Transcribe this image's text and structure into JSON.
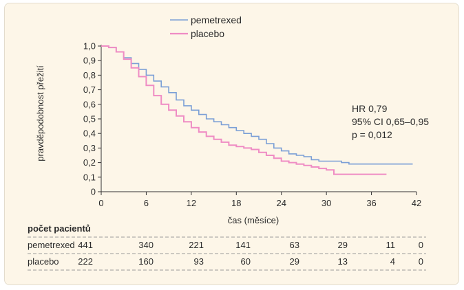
{
  "chart_data": {
    "type": "line",
    "title": "",
    "xlabel": "čas (měsíce)",
    "ylabel": "pravděpodobnost přežití",
    "xlim": [
      0,
      42
    ],
    "ylim": [
      0,
      1
    ],
    "xticks": [
      "0",
      "6",
      "12",
      "18",
      "24",
      "30",
      "36",
      "42"
    ],
    "xtick_values": [
      0,
      6,
      12,
      18,
      24,
      30,
      36,
      42
    ],
    "yticks": [
      "0",
      "0,1",
      "0,2",
      "0,3",
      "0,4",
      "0,5",
      "0,6",
      "0,7",
      "0,8",
      "0,9",
      "1,0"
    ],
    "ytick_values": [
      0,
      0.1,
      0.2,
      0.3,
      0.4,
      0.5,
      0.6,
      0.7,
      0.8,
      0.9,
      1.0
    ],
    "grid": false,
    "legend_position": "top-center",
    "step": true,
    "series": [
      {
        "name": "pemetrexed",
        "color": "#7b9fd6",
        "points": [
          [
            0,
            1.0
          ],
          [
            1,
            0.99
          ],
          [
            2,
            0.96
          ],
          [
            3,
            0.92
          ],
          [
            4,
            0.88
          ],
          [
            5,
            0.84
          ],
          [
            6,
            0.8
          ],
          [
            7,
            0.76
          ],
          [
            8,
            0.72
          ],
          [
            9,
            0.68
          ],
          [
            10,
            0.63
          ],
          [
            11,
            0.59
          ],
          [
            12,
            0.56
          ],
          [
            13,
            0.53
          ],
          [
            14,
            0.5
          ],
          [
            15,
            0.48
          ],
          [
            16,
            0.46
          ],
          [
            17,
            0.44
          ],
          [
            18,
            0.42
          ],
          [
            19,
            0.4
          ],
          [
            20,
            0.38
          ],
          [
            21,
            0.36
          ],
          [
            22,
            0.33
          ],
          [
            23,
            0.3
          ],
          [
            24,
            0.28
          ],
          [
            25,
            0.26
          ],
          [
            26,
            0.25
          ],
          [
            27,
            0.24
          ],
          [
            28,
            0.22
          ],
          [
            29,
            0.21
          ],
          [
            30,
            0.21
          ],
          [
            31,
            0.21
          ],
          [
            32,
            0.2
          ],
          [
            33,
            0.19
          ],
          [
            34,
            0.19
          ],
          [
            36,
            0.19
          ],
          [
            38,
            0.19
          ],
          [
            41.5,
            0.19
          ]
        ]
      },
      {
        "name": "placebo",
        "color": "#ef8cc4",
        "points": [
          [
            0,
            1.0
          ],
          [
            1,
            0.99
          ],
          [
            2,
            0.96
          ],
          [
            3,
            0.91
          ],
          [
            4,
            0.85
          ],
          [
            5,
            0.79
          ],
          [
            6,
            0.73
          ],
          [
            7,
            0.66
          ],
          [
            8,
            0.6
          ],
          [
            9,
            0.56
          ],
          [
            10,
            0.52
          ],
          [
            11,
            0.48
          ],
          [
            12,
            0.44
          ],
          [
            13,
            0.41
          ],
          [
            14,
            0.38
          ],
          [
            15,
            0.36
          ],
          [
            16,
            0.34
          ],
          [
            17,
            0.32
          ],
          [
            18,
            0.31
          ],
          [
            19,
            0.3
          ],
          [
            20,
            0.29
          ],
          [
            21,
            0.27
          ],
          [
            22,
            0.25
          ],
          [
            23,
            0.23
          ],
          [
            24,
            0.21
          ],
          [
            25,
            0.2
          ],
          [
            26,
            0.19
          ],
          [
            27,
            0.18
          ],
          [
            28,
            0.17
          ],
          [
            29,
            0.16
          ],
          [
            30,
            0.15
          ],
          [
            31,
            0.12
          ],
          [
            33,
            0.12
          ],
          [
            35,
            0.12
          ],
          [
            38,
            0.12
          ]
        ]
      }
    ],
    "annotations": [
      "HR 0,79",
      "95% CI 0,65–0,95",
      "p = 0,012"
    ]
  },
  "risk_table": {
    "title": "počet pacientů",
    "rows": [
      {
        "label": "pemetrexed",
        "values": [
          "441",
          "340",
          "221",
          "141",
          "63",
          "29",
          "11",
          "0"
        ]
      },
      {
        "label": "placebo",
        "values": [
          "222",
          "160",
          "93",
          "60",
          "29",
          "13",
          "4",
          "0"
        ]
      }
    ]
  }
}
